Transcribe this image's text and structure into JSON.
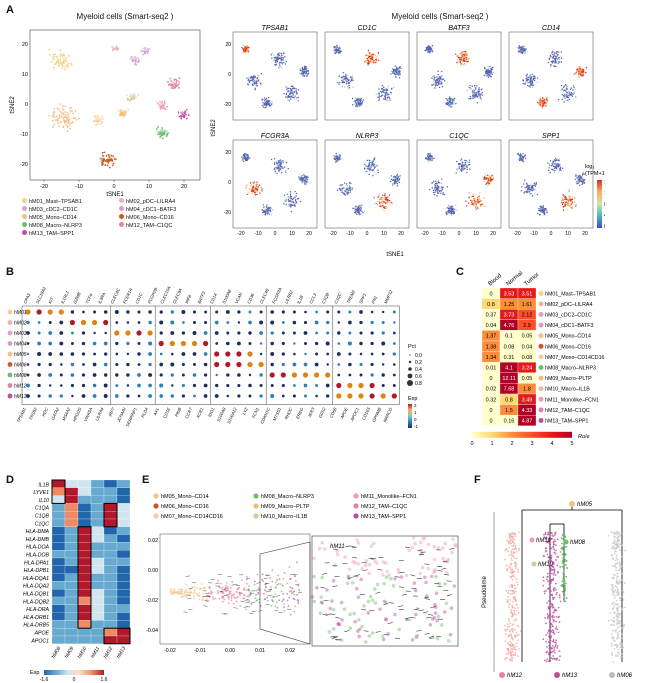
{
  "panels": {
    "A": {
      "letter": "A",
      "left_title": "Myeloid cells (Smart-seq2 )",
      "right_title": "Myeloid cells (Smart-seq2 )",
      "tsne_x": "tSNE1",
      "tsne_y": "tSNE2",
      "x_ticks": [
        "-20",
        "-10",
        "0",
        "10",
        "20"
      ],
      "y_ticks": [
        "20",
        "10",
        "0",
        "-10",
        "-20"
      ],
      "cluster_labels": [
        "hM01",
        "hM02",
        "hM03",
        "hM04",
        "hM05",
        "hM06",
        "hM07",
        "hM08",
        "hM09",
        "hM10",
        "hM11",
        "hM12",
        "hM13"
      ],
      "cluster_colors": [
        "#f0d58a",
        "#e9b3b3",
        "#d5a6c9",
        "#d3a0cd",
        "#f2c18a",
        "#c95a2a",
        "#f4d0a0",
        "#6bbf6b",
        "#f0c070",
        "#d8c79b",
        "#ed9bb5",
        "#e4829f",
        "#bb4fa0"
      ],
      "legend": [
        "hM01_Mast–TPSAB1",
        "hM02_pDC–LILRA4",
        "hM03_cDC2–CD1C",
        "hM04_cDC1–BATF3",
        "hM05_Mono–CD14",
        "hM06_Mono–CD16",
        "hM08_Macro–NLRP3",
        "hM12_TAM–C1QC",
        "hM13_TAM–SPP1"
      ],
      "genes": [
        "TPSAB1",
        "CD1C",
        "BATF3",
        "CD14",
        "FCGR3A",
        "NLRP3",
        "C1QC",
        "SPP1"
      ],
      "colorbar_title": "log₂\n(TPM+1)",
      "colorbar_ticks": [
        "16",
        "12",
        "8",
        "4",
        "0"
      ],
      "small_x_ticks": [
        "-20",
        "-10",
        "0",
        "10",
        "20"
      ],
      "small_y_ticks": [
        "20",
        "0",
        "-20"
      ]
    },
    "B": {
      "letter": "B",
      "rows": [
        "hM01",
        "hM02",
        "hM03",
        "hM04",
        "hM05",
        "hM06",
        "hM08",
        "hM12",
        "hM13"
      ],
      "row_colors": [
        "#f0d58a",
        "#e9b3b3",
        "#d5a6c9",
        "#d3a0cd",
        "#f2c18a",
        "#c95a2a",
        "#6bbf6b",
        "#e4829f",
        "#bb4fa0"
      ],
      "top_genes": [
        "CPA3",
        "SLC18A2",
        "KIT",
        "IL1RL1",
        "GZMB",
        "TCF4",
        "IL3RA",
        "CLEC4C",
        "FCER1A",
        "CD1C",
        "FCGR2B",
        "CLEC10A",
        "CLEC9A",
        "IRF8",
        "BATF3",
        "CD14",
        "S100A8",
        "VCAN",
        "CD36",
        "CLEC4E",
        "FCGR3A",
        "LILRB2",
        "IL1B",
        "CCL3",
        "C1QB",
        "C1QC",
        "TREM2",
        "SPP1",
        "FN1",
        "MMP12"
      ],
      "bottom_genes": [
        "TPSAB1",
        "TPSB2",
        "HDC",
        "GATA2",
        "MS4A2",
        "HPGDS",
        "VWA5A",
        "LILRA4",
        "IRF7",
        "JCHAIN",
        "SERPINF1",
        "PLD4",
        "AXL",
        "CD1E",
        "PKIB",
        "CCR7",
        "XCR1",
        "IDO1",
        "S100A9",
        "S100A12",
        "LYZ",
        "FCN1",
        "CDKN1C",
        "MTSS1",
        "RHOC",
        "EREG",
        "IER3",
        "G0S2",
        "CD68",
        "APOE",
        "APOC1",
        "CD163",
        "GPNMB",
        "MARCO"
      ],
      "size_legend_title": "Pct",
      "size_legend_values": [
        "0.0",
        "0.2",
        "0.4",
        "0.6",
        "0.8"
      ],
      "exp_legend_title": "Exp",
      "exp_legend_ticks": [
        "2",
        "1",
        "0",
        "-1"
      ]
    },
    "C": {
      "letter": "C",
      "columns": [
        "Blood",
        "Normal",
        "Tumor"
      ],
      "rows": [
        {
          "label": "hM01_Mast–TPSAB1",
          "color": "#f0d58a",
          "values": [
            "0",
            "3.53",
            "3.51"
          ]
        },
        {
          "label": "hM02_pDC–LILRA4",
          "color": "#e9b3b3",
          "values": [
            "0.8",
            "1.25",
            "1.61"
          ]
        },
        {
          "label": "hM03_cDC2–CD1C",
          "color": "#d5a6c9",
          "values": [
            "0.37",
            "3.73",
            "2.12"
          ]
        },
        {
          "label": "hM04_cDC1–BATF3",
          "color": "#d3a0cd",
          "values": [
            "0.04",
            "4.76",
            "2.9"
          ]
        },
        {
          "label": "hM05_Mono–CD14",
          "color": "#f2c18a",
          "values": [
            "1.37",
            "0.1",
            "0.05"
          ]
        },
        {
          "label": "hM06_Mono–CD16",
          "color": "#c95a2a",
          "values": [
            "1.38",
            "0.08",
            "0.04"
          ]
        },
        {
          "label": "hM07_Mono–CD14CD16",
          "color": "#f4d0a0",
          "values": [
            "1.34",
            "0.31",
            "0.08"
          ]
        },
        {
          "label": "hM08_Macro–NLRP3",
          "color": "#6bbf6b",
          "values": [
            "0.01",
            "4.1",
            "3.24"
          ]
        },
        {
          "label": "hM09_Macro–PLTP",
          "color": "#f0c070",
          "values": [
            "0",
            "12.11",
            "0.05"
          ]
        },
        {
          "label": "hM10_Macro–IL1B",
          "color": "#d8c79b",
          "values": [
            "0.02",
            "7.68",
            "1.8"
          ]
        },
        {
          "label": "hM11_Monolike–FCN1",
          "color": "#ed9bb5",
          "values": [
            "0.32",
            "0.8",
            "3.49"
          ]
        },
        {
          "label": "hM12_TAM–C1QC",
          "color": "#e4829f",
          "values": [
            "0",
            "1.5",
            "4.33"
          ]
        },
        {
          "label": "hM13_TAM–SPP1",
          "color": "#bb4fa0",
          "values": [
            "0",
            "0.16",
            "4.87"
          ]
        }
      ],
      "scale_ticks": [
        "0",
        "1",
        "2",
        "3",
        "4",
        "5"
      ],
      "scale_label": "Ro/e"
    },
    "D": {
      "letter": "D",
      "genes": [
        "IL1B",
        "LYVE1",
        "IL10",
        "C1QA",
        "C1QB",
        "C1QC",
        "HLA-DMA",
        "HLA-DMB",
        "HLA-DOA",
        "HLA-DOB",
        "HLA-DPA1",
        "HLA-DPB1",
        "HLA-DQA1",
        "HLA-DQA2",
        "HLA-DQB1",
        "HLA-DQB2",
        "HLA-DRA",
        "HLA-DRB1",
        "HLA-DRB5",
        "APOE",
        "APOC1"
      ],
      "columns": [
        "hM08",
        "hM09",
        "hM10",
        "hM11",
        "hM12",
        "hM13"
      ],
      "legend_title": "Exp",
      "legend_ticks": [
        "-1.6",
        "0",
        "1.6"
      ]
    },
    "E": {
      "letter": "E",
      "legend": [
        {
          "label": "hM05_Mono–CD14",
          "color": "#f2c18a"
        },
        {
          "label": "hM08_Macro–NLRP3",
          "color": "#6bbf6b"
        },
        {
          "label": "hM11_Monolike–FCN1",
          "color": "#ed9bb5"
        },
        {
          "label": "hM06_Mono–CD16",
          "color": "#c95a2a"
        },
        {
          "label": "hM09_Macro–PLTP",
          "color": "#f0c070"
        },
        {
          "label": "hM12_TAM–C1QC",
          "color": "#e4829f"
        },
        {
          "label": "hM07_Mono–CD14CD16",
          "color": "#f4d0a0"
        },
        {
          "label": "hM10_Macro–IL1B",
          "color": "#d8c79b"
        },
        {
          "label": "hM13_TAM–SPP1",
          "color": "#bb4fa0"
        }
      ],
      "x_ticks": [
        "-0.02",
        "-0.01",
        "0.00",
        "0.01",
        "0.02"
      ],
      "y_ticks": [
        "0.02",
        "0.00",
        "-0.02",
        "-0.04"
      ],
      "inset_label": "hM11"
    },
    "F": {
      "letter": "F",
      "root_label": "hM05",
      "branch_labels": [
        "hM11",
        "hM08",
        "hM10"
      ],
      "y_label": "Pseudotime",
      "bottom_labels": [
        {
          "label": "hM12",
          "color": "#e4829f"
        },
        {
          "label": "hM13",
          "color": "#bb4fa0"
        },
        {
          "label": "hM06",
          "color": "#bbbbbb"
        }
      ]
    }
  }
}
